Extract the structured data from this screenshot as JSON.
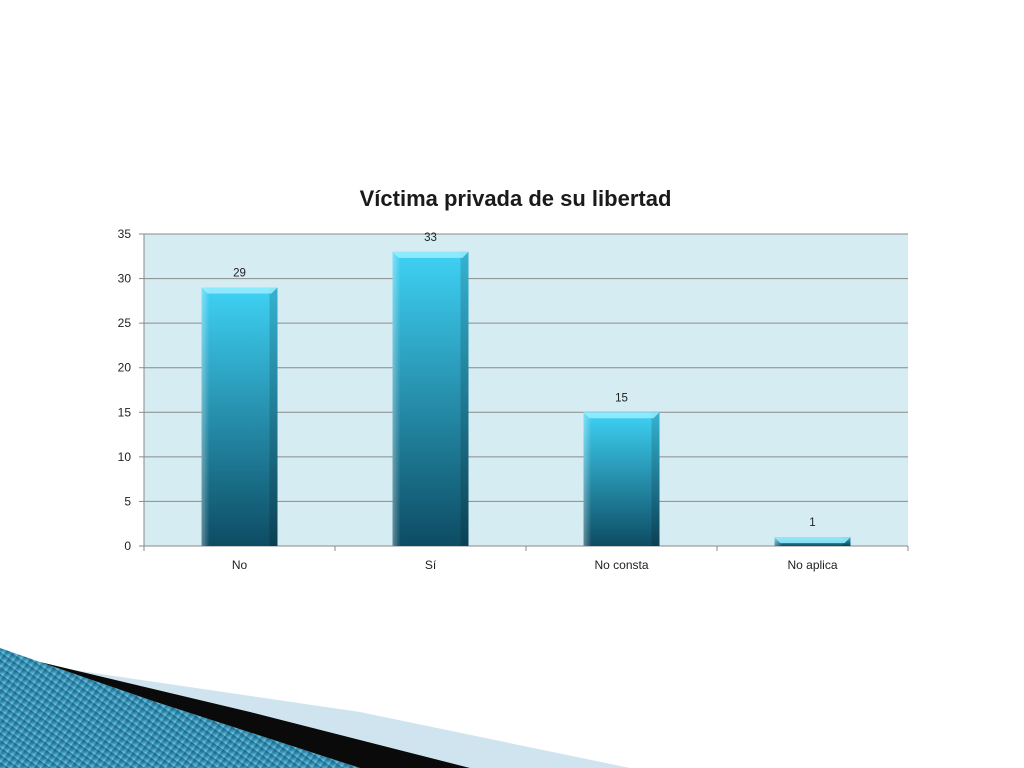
{
  "chart_data": {
    "type": "bar",
    "title": "Víctima privada de su libertad",
    "categories": [
      "No",
      "Sí",
      "No consta",
      "No aplica"
    ],
    "values": [
      29,
      33,
      15,
      1
    ],
    "data_labels": [
      "29",
      "33",
      "15",
      "1"
    ],
    "ylim": [
      0,
      35
    ],
    "y_ticks": [
      0,
      5,
      10,
      15,
      20,
      25,
      30,
      35
    ],
    "y_tick_labels": [
      "0",
      "5",
      "10",
      "15",
      "20",
      "25",
      "30",
      "35"
    ],
    "grid": true,
    "legend": "none",
    "colors": {
      "plot_background": "#d6ecf3",
      "gridline": "#8a8a8a",
      "bar_top": "#3fd2f5",
      "bar_bottom": "#0d4c63"
    }
  }
}
